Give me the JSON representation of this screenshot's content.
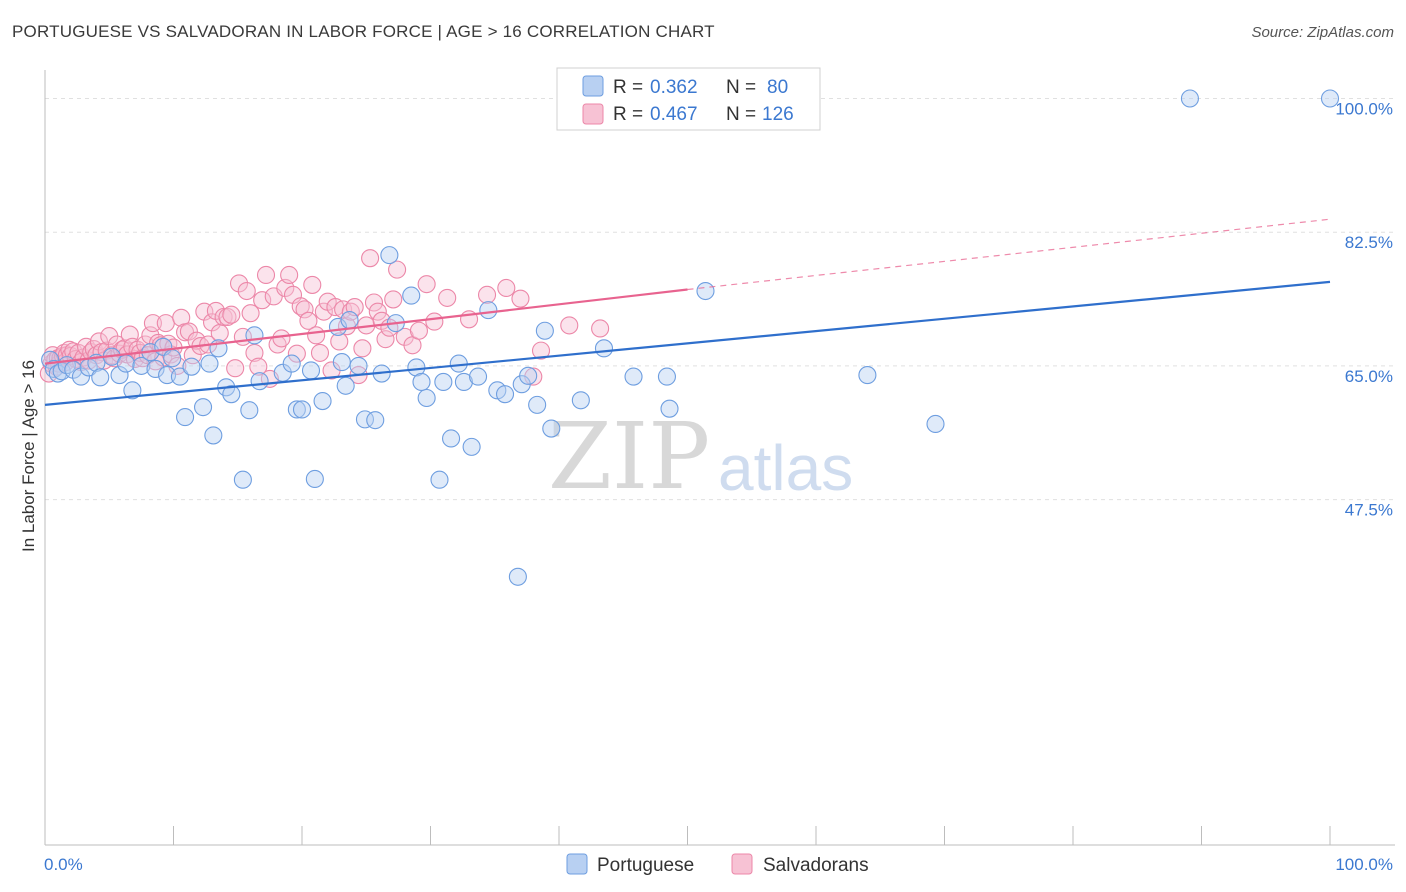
{
  "header": {
    "title": "PORTUGUESE VS SALVADORAN IN LABOR FORCE | AGE > 16 CORRELATION CHART",
    "source": "Source: ZipAtlas.com"
  },
  "legend": {
    "r_label": "R =",
    "n_label": "N =",
    "portuguese": {
      "r": "0.362",
      "n": "80"
    },
    "salvadoran": {
      "r": "0.467",
      "n": "126"
    }
  },
  "bottom_legend": {
    "portuguese": "Portuguese",
    "salvadorans": "Salvadorans"
  },
  "watermark": {
    "zip": "ZIP",
    "atlas": "atlas"
  },
  "colors": {
    "portuguese_fill": "#b8d0f2",
    "portuguese_stroke": "#6e9ee0",
    "portuguese_line": "#2f6fcc",
    "salvadoran_fill": "#f7c2d4",
    "salvadoran_stroke": "#ec87a8",
    "salvadoran_line": "#e8638f",
    "tick_text": "#3b78d0",
    "grid": "#e0e0e0"
  },
  "chart_data": {
    "type": "scatter",
    "title": "PORTUGUESE VS SALVADORAN IN LABOR FORCE | AGE > 16 CORRELATION CHART",
    "ylabel": "In Labor Force | Age > 16",
    "xlabel": "",
    "xlim": [
      0,
      100
    ],
    "ylim": [
      30,
      102
    ],
    "x_tick_labels": [
      "0.0%",
      "100.0%"
    ],
    "y_ticks": [
      47.5,
      65.0,
      82.5,
      100.0
    ],
    "y_tick_labels": [
      "47.5%",
      "65.0%",
      "82.5%",
      "100.0%"
    ],
    "grid": true,
    "series": [
      {
        "name": "Portuguese",
        "r": 0.362,
        "n": 80,
        "trend": {
          "x": [
            0,
            100
          ],
          "y": [
            59.9,
            76.0
          ]
        },
        "points": [
          [
            0.4,
            65.8
          ],
          [
            0.7,
            64.6
          ],
          [
            1.0,
            64.0
          ],
          [
            1.3,
            64.3
          ],
          [
            1.7,
            65.1
          ],
          [
            2.2,
            64.5
          ],
          [
            2.8,
            63.6
          ],
          [
            3.4,
            64.8
          ],
          [
            4.0,
            65.4
          ],
          [
            4.3,
            63.5
          ],
          [
            5.2,
            66.2
          ],
          [
            5.8,
            63.8
          ],
          [
            6.3,
            65.3
          ],
          [
            6.8,
            61.8
          ],
          [
            7.5,
            65.0
          ],
          [
            8.2,
            66.8
          ],
          [
            8.6,
            64.6
          ],
          [
            9.2,
            67.5
          ],
          [
            9.5,
            63.8
          ],
          [
            9.9,
            66.0
          ],
          [
            10.5,
            63.6
          ],
          [
            10.9,
            58.3
          ],
          [
            11.4,
            64.9
          ],
          [
            12.3,
            59.6
          ],
          [
            12.8,
            65.3
          ],
          [
            13.1,
            55.9
          ],
          [
            13.5,
            67.3
          ],
          [
            14.1,
            62.2
          ],
          [
            14.5,
            61.3
          ],
          [
            15.4,
            50.1
          ],
          [
            15.9,
            59.2
          ],
          [
            16.3,
            69.0
          ],
          [
            16.7,
            63.0
          ],
          [
            18.5,
            64.1
          ],
          [
            19.2,
            65.3
          ],
          [
            19.6,
            59.3
          ],
          [
            20.0,
            59.3
          ],
          [
            20.7,
            64.4
          ],
          [
            21.0,
            50.2
          ],
          [
            21.6,
            60.4
          ],
          [
            22.8,
            70.1
          ],
          [
            23.1,
            65.5
          ],
          [
            23.4,
            62.4
          ],
          [
            23.7,
            71.0
          ],
          [
            24.4,
            65.0
          ],
          [
            24.9,
            58.0
          ],
          [
            25.7,
            57.9
          ],
          [
            26.2,
            64.0
          ],
          [
            26.8,
            79.5
          ],
          [
            27.3,
            70.6
          ],
          [
            28.5,
            74.2
          ],
          [
            28.9,
            64.8
          ],
          [
            29.3,
            62.9
          ],
          [
            29.7,
            60.8
          ],
          [
            30.7,
            50.1
          ],
          [
            31.0,
            62.9
          ],
          [
            31.6,
            55.5
          ],
          [
            32.2,
            65.3
          ],
          [
            32.6,
            62.9
          ],
          [
            33.2,
            54.4
          ],
          [
            33.7,
            63.6
          ],
          [
            34.5,
            72.3
          ],
          [
            35.2,
            61.8
          ],
          [
            35.8,
            61.3
          ],
          [
            36.8,
            37.4
          ],
          [
            37.1,
            62.6
          ],
          [
            37.6,
            63.7
          ],
          [
            38.3,
            59.9
          ],
          [
            38.9,
            69.6
          ],
          [
            39.4,
            56.8
          ],
          [
            41.7,
            60.5
          ],
          [
            43.5,
            67.3
          ],
          [
            45.8,
            63.6
          ],
          [
            48.4,
            63.6
          ],
          [
            48.6,
            59.4
          ],
          [
            51.4,
            74.8
          ],
          [
            64.0,
            63.8
          ],
          [
            69.3,
            57.4
          ],
          [
            89.1,
            100.0
          ],
          [
            100.0,
            100.0
          ]
        ]
      },
      {
        "name": "Salvadorans",
        "r": 0.467,
        "n": 126,
        "trend": {
          "x": [
            0,
            50
          ],
          "y": [
            65.3,
            75.0
          ]
        },
        "trend_dashed": {
          "x": [
            50,
            100
          ],
          "y": [
            75.0,
            84.2
          ]
        },
        "points": [
          [
            0.3,
            64.0
          ],
          [
            0.5,
            65.3
          ],
          [
            0.6,
            66.4
          ],
          [
            0.8,
            65.8
          ],
          [
            0.9,
            64.9
          ],
          [
            1.0,
            66.0
          ],
          [
            1.1,
            65.3
          ],
          [
            1.2,
            66.0
          ],
          [
            1.4,
            66.3
          ],
          [
            1.5,
            66.7
          ],
          [
            1.6,
            65.5
          ],
          [
            1.7,
            66.4
          ],
          [
            1.9,
            67.1
          ],
          [
            2.0,
            66.3
          ],
          [
            2.2,
            66.9
          ],
          [
            2.4,
            65.9
          ],
          [
            2.6,
            66.7
          ],
          [
            2.8,
            65.5
          ],
          [
            3.0,
            66.1
          ],
          [
            3.2,
            67.5
          ],
          [
            3.4,
            65.7
          ],
          [
            3.6,
            66.8
          ],
          [
            3.8,
            67.2
          ],
          [
            4.0,
            66.4
          ],
          [
            4.2,
            68.2
          ],
          [
            4.4,
            66.8
          ],
          [
            4.6,
            65.7
          ],
          [
            4.8,
            67.0
          ],
          [
            5.0,
            68.9
          ],
          [
            5.2,
            66.4
          ],
          [
            5.4,
            66.0
          ],
          [
            5.6,
            67.8
          ],
          [
            5.8,
            66.6
          ],
          [
            6.0,
            67.1
          ],
          [
            6.2,
            67.3
          ],
          [
            6.4,
            66.5
          ],
          [
            6.6,
            69.1
          ],
          [
            6.8,
            67.5
          ],
          [
            7.0,
            65.9
          ],
          [
            7.2,
            67.1
          ],
          [
            7.4,
            66.7
          ],
          [
            7.6,
            66.0
          ],
          [
            7.8,
            67.8
          ],
          [
            8.0,
            66.4
          ],
          [
            8.2,
            69.0
          ],
          [
            8.4,
            70.6
          ],
          [
            8.6,
            65.6
          ],
          [
            8.8,
            68.0
          ],
          [
            9.0,
            67.7
          ],
          [
            9.2,
            66.1
          ],
          [
            9.4,
            70.6
          ],
          [
            9.6,
            67.9
          ],
          [
            9.8,
            66.5
          ],
          [
            10.0,
            67.4
          ],
          [
            10.3,
            65.0
          ],
          [
            10.6,
            71.3
          ],
          [
            10.9,
            69.4
          ],
          [
            11.2,
            69.5
          ],
          [
            11.5,
            66.4
          ],
          [
            11.8,
            68.3
          ],
          [
            12.1,
            67.6
          ],
          [
            12.4,
            72.1
          ],
          [
            12.7,
            67.8
          ],
          [
            13.0,
            70.7
          ],
          [
            13.3,
            72.2
          ],
          [
            13.6,
            69.3
          ],
          [
            13.9,
            71.4
          ],
          [
            14.2,
            71.4
          ],
          [
            14.5,
            71.7
          ],
          [
            14.8,
            64.7
          ],
          [
            15.1,
            75.8
          ],
          [
            15.4,
            68.8
          ],
          [
            15.7,
            74.8
          ],
          [
            16.0,
            71.9
          ],
          [
            16.3,
            66.7
          ],
          [
            16.6,
            64.9
          ],
          [
            16.9,
            73.6
          ],
          [
            17.2,
            76.9
          ],
          [
            17.5,
            63.3
          ],
          [
            17.8,
            74.1
          ],
          [
            18.1,
            67.8
          ],
          [
            18.4,
            68.6
          ],
          [
            18.7,
            75.2
          ],
          [
            19.0,
            76.9
          ],
          [
            19.3,
            74.3
          ],
          [
            19.6,
            66.6
          ],
          [
            19.9,
            72.8
          ],
          [
            20.2,
            72.4
          ],
          [
            20.5,
            70.9
          ],
          [
            20.8,
            75.6
          ],
          [
            21.1,
            69.0
          ],
          [
            21.4,
            66.7
          ],
          [
            21.7,
            72.1
          ],
          [
            22.0,
            73.4
          ],
          [
            22.3,
            64.4
          ],
          [
            22.6,
            72.7
          ],
          [
            22.9,
            68.2
          ],
          [
            23.2,
            72.4
          ],
          [
            23.5,
            70.2
          ],
          [
            23.8,
            72.1
          ],
          [
            24.1,
            72.7
          ],
          [
            24.4,
            63.8
          ],
          [
            24.7,
            67.3
          ],
          [
            25.0,
            70.3
          ],
          [
            25.3,
            79.1
          ],
          [
            25.6,
            73.3
          ],
          [
            25.9,
            72.1
          ],
          [
            26.2,
            70.9
          ],
          [
            26.5,
            68.5
          ],
          [
            26.8,
            70.0
          ],
          [
            27.1,
            73.7
          ],
          [
            27.4,
            77.6
          ],
          [
            28.0,
            68.8
          ],
          [
            28.6,
            67.7
          ],
          [
            29.1,
            69.6
          ],
          [
            29.7,
            75.7
          ],
          [
            30.3,
            70.8
          ],
          [
            31.3,
            73.9
          ],
          [
            33.0,
            71.1
          ],
          [
            34.4,
            74.3
          ],
          [
            35.9,
            75.2
          ],
          [
            37.0,
            73.8
          ],
          [
            38.0,
            63.6
          ],
          [
            38.6,
            67.0
          ],
          [
            40.8,
            70.3
          ],
          [
            43.2,
            69.9
          ]
        ]
      }
    ]
  }
}
